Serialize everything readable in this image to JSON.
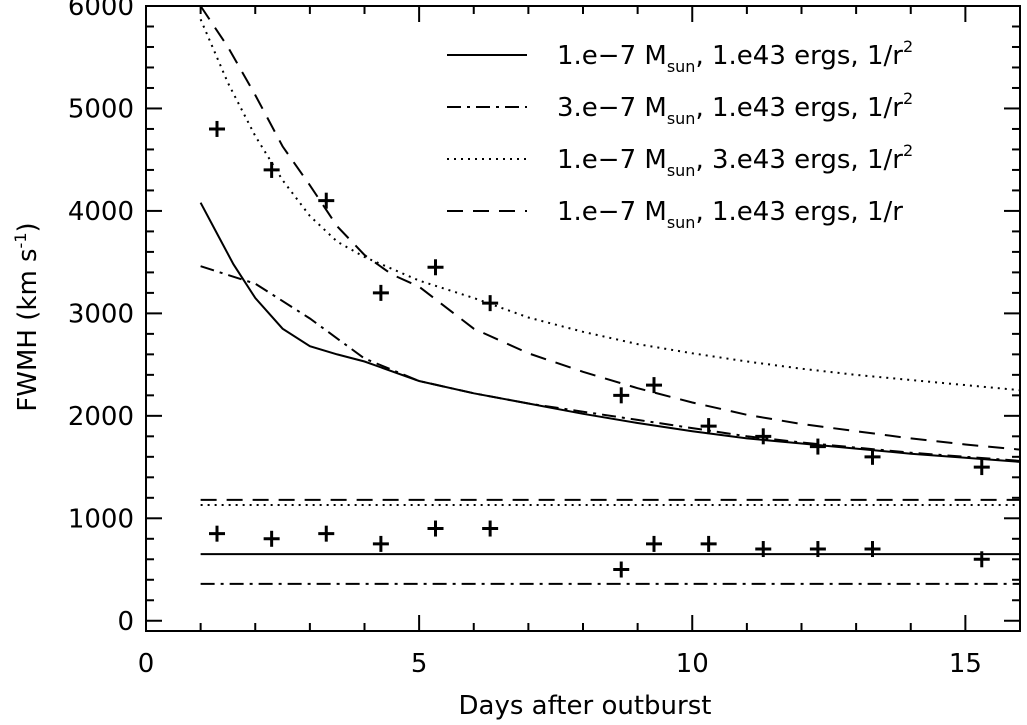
{
  "chart_data": {
    "type": "line",
    "xlabel": "Days after outburst",
    "ylabel": "FWMH (km s",
    "ylabel_unit_exponent": "-1",
    "ylabel_close": ")",
    "xlim": [
      0,
      16
    ],
    "ylim": [
      -100,
      6000
    ],
    "xticks": [
      0,
      5,
      10,
      15
    ],
    "yticks": [
      0,
      1000,
      2000,
      3000,
      4000,
      5000,
      6000
    ],
    "legend_position": "top-right",
    "series": [
      {
        "name": "1.e-7 Msun, 1.e43 ergs, 1/r²",
        "label_a": "1.e−7 M",
        "label_sub": "sun",
        "label_b": ", 1.e43 ergs, 1/r",
        "label_sup": "2",
        "style": "solid",
        "x": [
          1.0,
          1.3,
          1.6,
          2.0,
          2.5,
          3.0,
          3.5,
          4.0,
          5.0,
          6.0,
          7.0,
          8.0,
          9.0,
          10.0,
          11.0,
          12.0,
          13.0,
          14.0,
          15.0,
          16.0
        ],
        "y": [
          4080,
          3780,
          3480,
          3150,
          2850,
          2680,
          2600,
          2530,
          2340,
          2220,
          2120,
          2020,
          1930,
          1850,
          1780,
          1730,
          1680,
          1630,
          1590,
          1550
        ],
        "constant_level": 650
      },
      {
        "name": "3.e-7 Msun, 1.e43 ergs, 1/r²",
        "label_a": "3.e−7 M",
        "label_sub": "sun",
        "label_b": ", 1.e43 ergs, 1/r",
        "label_sup": "2",
        "style": "dashdot",
        "x": [
          1.0,
          2.0,
          3.0,
          4.0,
          5.0,
          6.0,
          7.0,
          8.0,
          9.0,
          10.0,
          11.0,
          12.0,
          13.0,
          14.0,
          15.0,
          16.0
        ],
        "y": [
          3460,
          3290,
          2950,
          2560,
          2340,
          2220,
          2120,
          2040,
          1960,
          1880,
          1800,
          1740,
          1690,
          1640,
          1600,
          1560
        ],
        "constant_level": 360
      },
      {
        "name": "1.e-7 Msun, 3.e43 ergs, 1/r²",
        "label_a": "1.e−7 M",
        "label_sub": "sun",
        "label_b": ", 3.e43 ergs, 1/r",
        "label_sup": "2",
        "style": "dotted",
        "x": [
          1.0,
          1.5,
          2.0,
          2.5,
          3.0,
          3.5,
          4.0,
          5.0,
          6.0,
          7.0,
          8.0,
          9.0,
          10.0,
          11.0,
          12.0,
          13.0,
          14.0,
          15.0,
          16.0
        ],
        "y": [
          5870,
          5250,
          4730,
          4300,
          3950,
          3700,
          3550,
          3320,
          3150,
          2960,
          2820,
          2700,
          2610,
          2530,
          2460,
          2400,
          2350,
          2300,
          2250
        ],
        "constant_level": 1130
      },
      {
        "name": "1.e-7 Msun, 1.e43 ergs, 1/r",
        "label_a": "1.e−7 M",
        "label_sub": "sun",
        "label_b": ", 1.e43 ergs, 1/r",
        "label_sup": "",
        "style": "dashed",
        "x": [
          1.0,
          1.5,
          2.0,
          2.5,
          3.0,
          3.5,
          4.0,
          4.5,
          5.0,
          6.0,
          7.0,
          8.0,
          9.0,
          10.0,
          11.0,
          12.0,
          13.0,
          14.0,
          15.0,
          16.0
        ],
        "y": [
          6000,
          5600,
          5130,
          4630,
          4250,
          3850,
          3570,
          3380,
          3260,
          2850,
          2610,
          2430,
          2270,
          2130,
          2010,
          1920,
          1850,
          1780,
          1720,
          1670
        ],
        "constant_level": 1180
      }
    ],
    "observations_broad": {
      "x": [
        1.3,
        2.3,
        3.3,
        4.3,
        5.3,
        6.3,
        8.7,
        9.3,
        10.3,
        11.3,
        12.3,
        13.3,
        15.3
      ],
      "y": [
        4800,
        4400,
        4100,
        3200,
        3450,
        3100,
        2200,
        2300,
        1900,
        1800,
        1700,
        1600,
        1500
      ]
    },
    "observations_narrow": {
      "x": [
        1.3,
        2.3,
        3.3,
        4.3,
        5.3,
        6.3,
        8.7,
        9.3,
        10.3,
        11.3,
        12.3,
        13.3,
        15.3
      ],
      "y": [
        850,
        800,
        850,
        750,
        900,
        900,
        500,
        750,
        750,
        700,
        700,
        700,
        600
      ]
    }
  }
}
